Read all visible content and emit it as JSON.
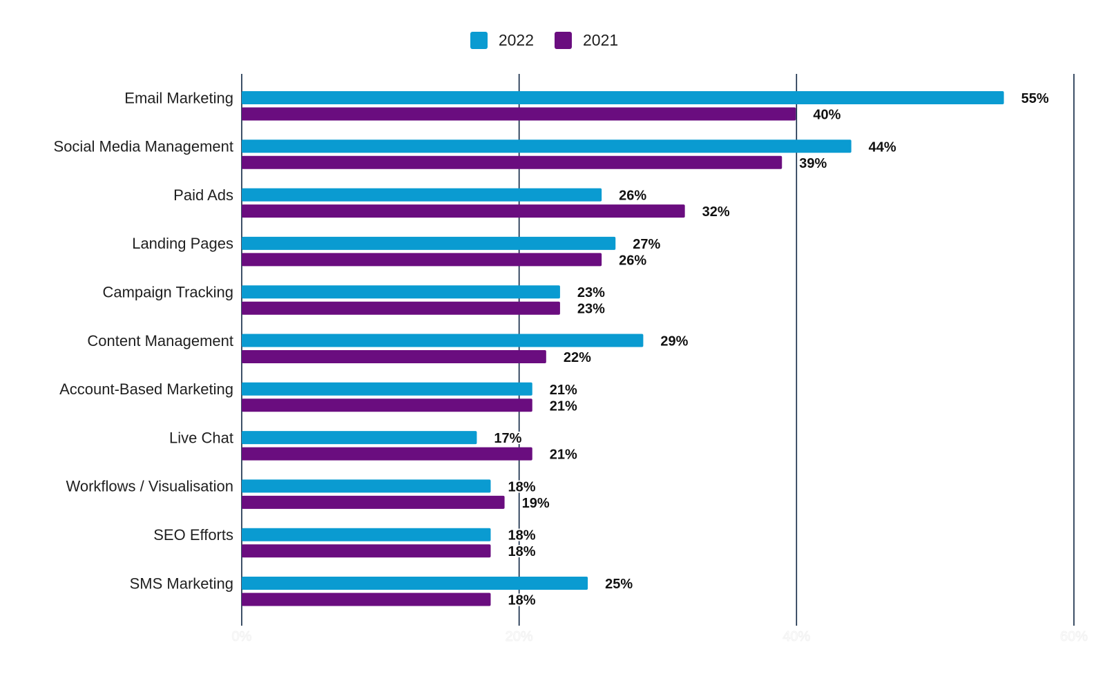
{
  "chart_data": {
    "type": "bar",
    "orientation": "horizontal",
    "categories": [
      "Email Marketing",
      "Social Media Management",
      "Paid Ads",
      "Landing Pages",
      "Campaign Tracking",
      "Content Management",
      "Account-Based Marketing",
      "Live Chat",
      "Workflows / Visualisation",
      "SEO Efforts",
      "SMS Marketing"
    ],
    "series": [
      {
        "name": "2022",
        "color": "#0a9bd1",
        "values": [
          55,
          44,
          26,
          27,
          23,
          29,
          21,
          17,
          18,
          18,
          25
        ],
        "labels": [
          "55%",
          "44%",
          "26%",
          "27%",
          "23%",
          "29%",
          "21%",
          "17%",
          "18%",
          "18%",
          "25%"
        ]
      },
      {
        "name": "2021",
        "color": "#6a0d7f",
        "values": [
          40,
          39,
          32,
          26,
          23,
          22,
          21,
          21,
          19,
          18,
          18
        ],
        "labels": [
          "40%",
          "39%",
          "32%",
          "26%",
          "23%",
          "22%",
          "21%",
          "21%",
          "19%",
          "18%",
          "18%"
        ]
      }
    ],
    "xlim": [
      0,
      60
    ],
    "x_ticks": [
      "0%",
      "20%",
      "40%",
      "60%"
    ],
    "grid": true,
    "legend": "top-center"
  }
}
